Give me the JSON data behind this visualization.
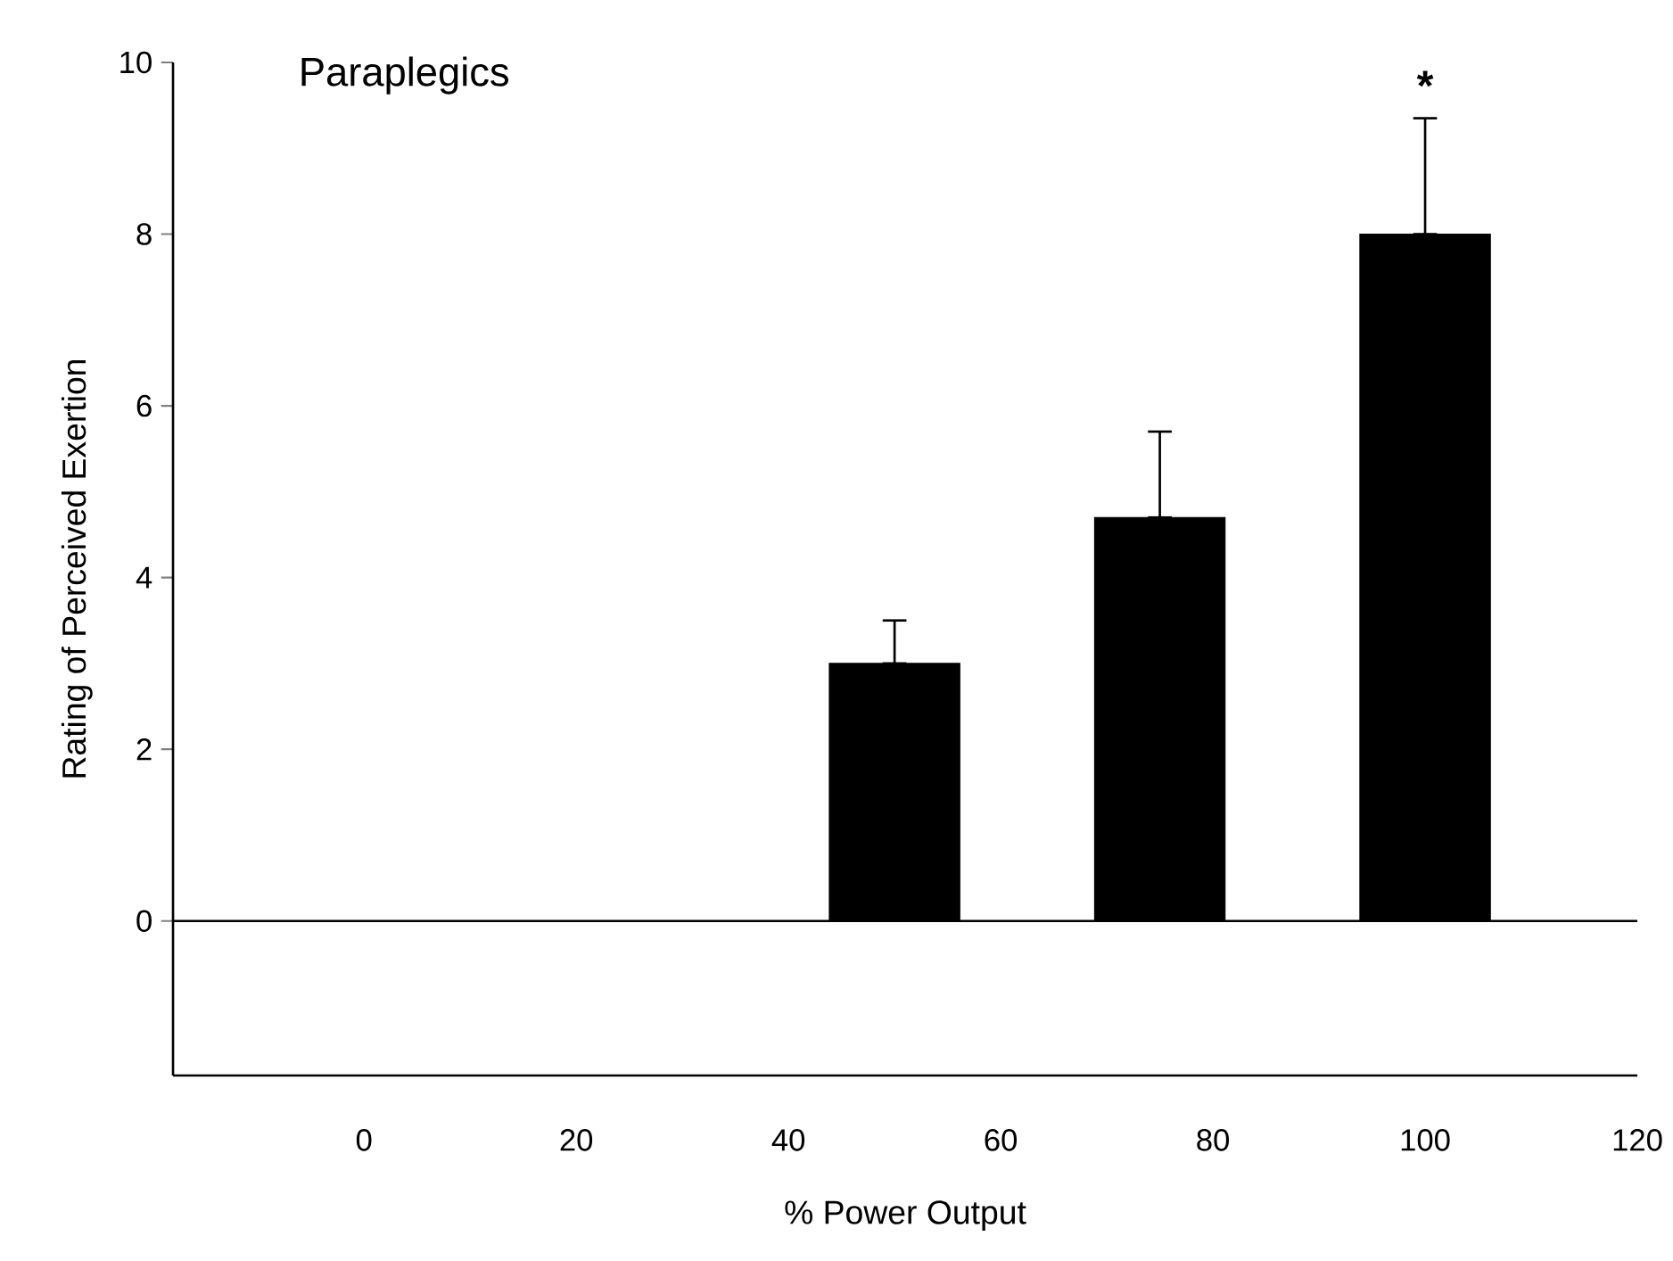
{
  "chart_data": {
    "type": "bar",
    "title": "Paraplegics",
    "xlabel": "% Power Output",
    "ylabel": "Rating of Perceived Exertion",
    "x": [
      50,
      75,
      100
    ],
    "series": [
      {
        "color": "#000000",
        "values": [
          3.0,
          4.7,
          8.0
        ],
        "errors": [
          [
            3.0,
            3.5
          ],
          [
            4.7,
            5.7
          ],
          [
            8.0,
            9.35
          ]
        ]
      }
    ],
    "xlim": [
      -18,
      120
    ],
    "xticks": [
      0,
      20,
      40,
      60,
      80,
      100,
      120
    ],
    "ylim": [
      -1.8,
      10
    ],
    "yticks": [
      0,
      2,
      4,
      6,
      8,
      10
    ],
    "ref_lines": [
      {
        "axis": "y",
        "value": 0,
        "color": "#000000"
      }
    ],
    "annotations": [
      {
        "text": "*",
        "x": 100,
        "y": 9.35
      }
    ]
  }
}
